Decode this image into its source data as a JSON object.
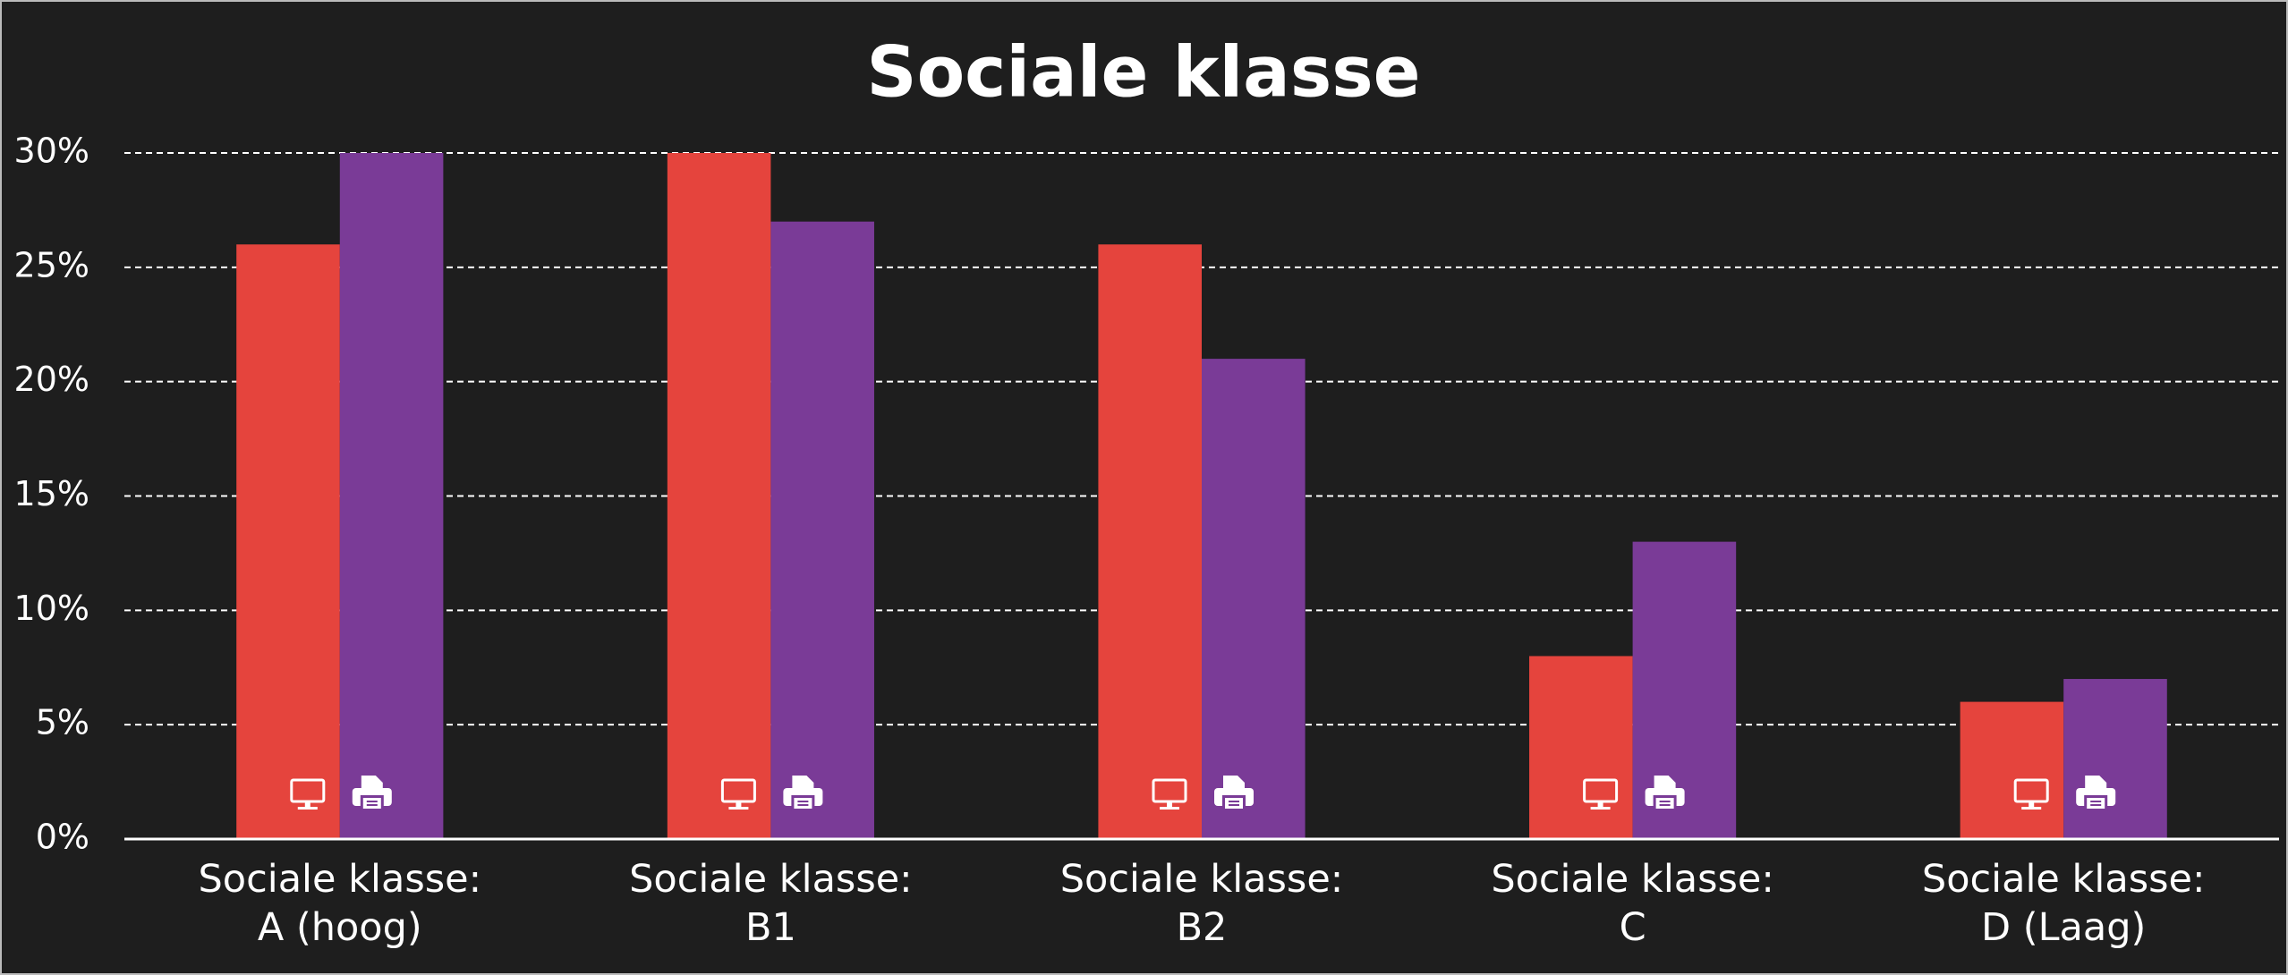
{
  "chart_data": {
    "type": "bar",
    "title": "Sociale klasse",
    "categories": [
      "Sociale klasse:\nA (hoog)",
      "Sociale klasse:\nB1",
      "Sociale klasse:\nB2",
      "Sociale klasse:\nC",
      "Sociale klasse:\nD (Laag)"
    ],
    "series": [
      {
        "color": "#e5443d",
        "values": [
          26,
          30,
          26,
          8,
          6
        ]
      },
      {
        "color": "#7a3b97",
        "values": [
          30,
          27,
          21,
          13,
          7
        ]
      }
    ],
    "ylim": [
      0,
      30
    ],
    "yticks": [
      {
        "value": 0,
        "label": "0%"
      },
      {
        "value": 5,
        "label": "5%"
      },
      {
        "value": 10,
        "label": "10%"
      },
      {
        "value": 15,
        "label": "15%"
      },
      {
        "value": 20,
        "label": "20%"
      },
      {
        "value": 25,
        "label": "25%"
      },
      {
        "value": 30,
        "label": "30%"
      }
    ],
    "grid": true
  }
}
